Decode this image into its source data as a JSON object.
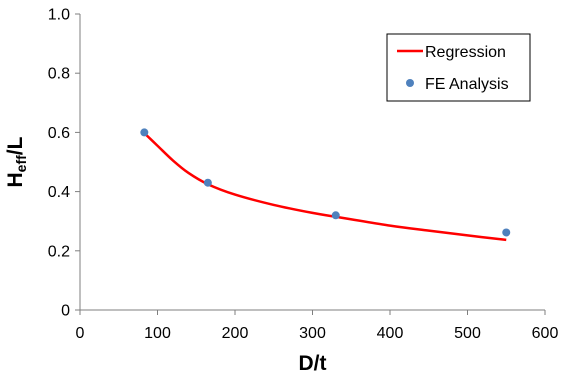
{
  "chart_data": {
    "type": "scatter",
    "xlabel": "D/t",
    "ylabel_main": "H",
    "ylabel_sub": "eff",
    "ylabel_tail": "/L",
    "xlim": [
      0,
      600
    ],
    "ylim": [
      0,
      1.0
    ],
    "x_ticks": [
      0,
      100,
      200,
      300,
      400,
      500,
      600
    ],
    "y_ticks": [
      0,
      0.2,
      0.4,
      0.6,
      0.8,
      1.0
    ],
    "x_tick_labels": [
      "0",
      "100",
      "200",
      "300",
      "400",
      "500",
      "600"
    ],
    "y_tick_labels": [
      "0",
      "0.2",
      "0.4",
      "0.6",
      "0.8",
      "1.0"
    ],
    "grid": false,
    "legend_position": "top-right",
    "series": [
      {
        "name": "Regression",
        "kind": "line",
        "color": "#ff0000",
        "x": [
          82,
          100,
          120,
          140,
          165,
          200,
          250,
          300,
          330,
          400,
          450,
          500,
          550
        ],
        "y": [
          0.6,
          0.555,
          0.505,
          0.463,
          0.425,
          0.39,
          0.355,
          0.328,
          0.315,
          0.285,
          0.268,
          0.252,
          0.237
        ]
      },
      {
        "name": "FE Analysis",
        "kind": "scatter",
        "color": "#4f81bd",
        "x": [
          83,
          165,
          330,
          550
        ],
        "y": [
          0.6,
          0.43,
          0.32,
          0.262
        ]
      }
    ]
  }
}
